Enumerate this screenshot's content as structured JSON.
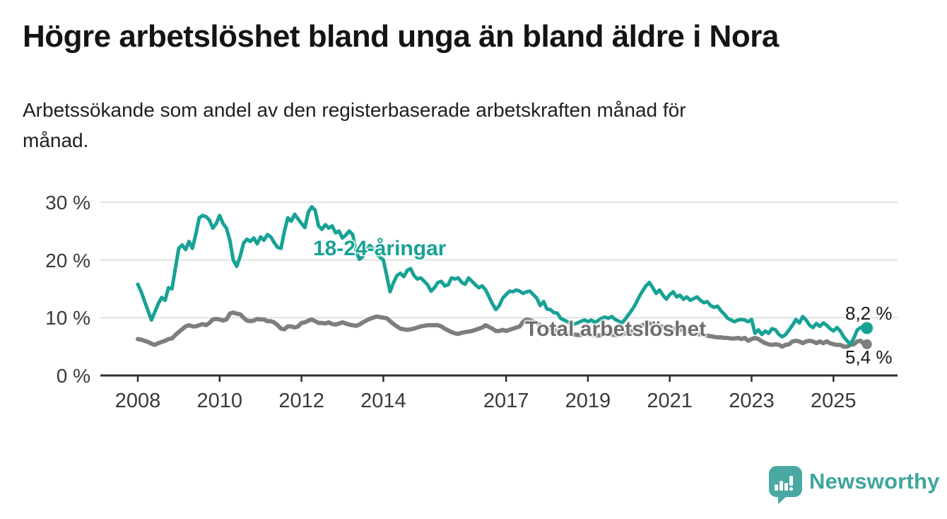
{
  "header": {
    "title": "Högre arbetslöshet bland unga än bland äldre i Nora",
    "subtitle_line1": "Arbetssökande som andel av den registerbaserade arbetskraften månad för",
    "subtitle_line2": "månad."
  },
  "colors": {
    "youth_teal": "#17a295",
    "total_gray": "#7e7e7e",
    "axis_dark": "#2e2e2e",
    "gridline": "#d9d9d9",
    "logo_teal": "#4aa8a2"
  },
  "chart_data": {
    "type": "line",
    "title": "",
    "xlabel": "",
    "ylabel": "",
    "x_start": "2008-01",
    "x_end": "2025-10",
    "frequency": "monthly",
    "ylim": [
      0,
      32
    ],
    "grid": "horizontal",
    "yticks": [
      {
        "value": 30,
        "label": "30 %"
      },
      {
        "value": 20,
        "label": "20 %"
      },
      {
        "value": 10,
        "label": "10 %"
      },
      {
        "value": 0,
        "label": "0 %"
      }
    ],
    "xticks": [
      {
        "year": 2008,
        "label": "2008"
      },
      {
        "year": 2010,
        "label": "2010"
      },
      {
        "year": 2012,
        "label": "2012"
      },
      {
        "year": 2014,
        "label": "2014"
      },
      {
        "year": 2017,
        "label": "2017"
      },
      {
        "year": 2019,
        "label": "2019"
      },
      {
        "year": 2021,
        "label": "2021"
      },
      {
        "year": 2023,
        "label": "2023"
      },
      {
        "year": 2025,
        "label": "2025"
      }
    ],
    "series": [
      {
        "name": "18-24-åringar",
        "color": "#17a295",
        "stroke_width": 5,
        "end_label": "8,2 %",
        "end_value": 8.2,
        "values": [
          15.8,
          14.5,
          12.8,
          11.2,
          9.6,
          11.0,
          12.4,
          13.5,
          13.0,
          15.2,
          15.0,
          18.5,
          22.0,
          22.6,
          21.8,
          23.2,
          22.0,
          24.4,
          27.3,
          27.7,
          27.5,
          26.9,
          25.5,
          26.3,
          27.7,
          26.3,
          25.5,
          23.4,
          20.0,
          18.9,
          20.6,
          22.9,
          23.6,
          23.2,
          23.8,
          22.8,
          24.0,
          23.4,
          24.4,
          24.0,
          23.0,
          22.2,
          22.0,
          25.0,
          27.3,
          26.7,
          27.9,
          27.1,
          26.3,
          25.6,
          28.3,
          29.2,
          28.6,
          25.9,
          25.3,
          26.1,
          25.5,
          25.9,
          24.7,
          25.0,
          23.8,
          24.3,
          25.0,
          24.4,
          21.5,
          20.1,
          20.6,
          21.8,
          22.5,
          22.0,
          21.0,
          20.5,
          20.0,
          17.3,
          14.5,
          16.1,
          17.3,
          17.7,
          17.1,
          18.2,
          18.5,
          17.3,
          16.7,
          16.9,
          16.3,
          15.7,
          14.6,
          15.2,
          16.1,
          16.3,
          15.5,
          15.7,
          16.9,
          16.7,
          16.9,
          16.1,
          15.8,
          16.9,
          16.3,
          15.7,
          15.2,
          15.5,
          14.8,
          13.6,
          12.4,
          11.4,
          12.1,
          13.4,
          14.0,
          14.6,
          14.5,
          14.8,
          14.6,
          14.2,
          14.5,
          14.6,
          14.0,
          13.4,
          12.1,
          12.8,
          11.5,
          11.4,
          10.9,
          10.8,
          9.9,
          9.6,
          9.3,
          9.0,
          8.9,
          9.1,
          9.4,
          9.6,
          9.3,
          9.6,
          9.2,
          9.5,
          9.9,
          10.1,
          9.9,
          10.2,
          9.7,
          9.4,
          9.1,
          9.8,
          10.6,
          11.4,
          12.4,
          13.6,
          14.6,
          15.5,
          16.1,
          15.2,
          14.2,
          14.8,
          13.9,
          13.2,
          14.0,
          14.5,
          13.6,
          13.9,
          13.2,
          13.6,
          13.0,
          13.3,
          13.6,
          13.0,
          12.6,
          12.8,
          12.1,
          11.8,
          12.0,
          11.2,
          10.6,
          9.9,
          9.6,
          9.3,
          9.6,
          9.7,
          9.6,
          9.3,
          9.7,
          7.3,
          7.9,
          7.1,
          7.7,
          7.3,
          8.1,
          7.9,
          7.1,
          6.7,
          7.1,
          7.9,
          8.7,
          9.7,
          9.1,
          10.2,
          9.6,
          8.7,
          8.3,
          9.0,
          8.5,
          9.1,
          8.7,
          8.1,
          7.7,
          8.3,
          7.7,
          6.7,
          6.0,
          5.4,
          6.5,
          7.9,
          8.3,
          8.2
        ]
      },
      {
        "name": "Total arbetslöshet",
        "color": "#7e7e7e",
        "stroke_width": 6,
        "end_label": "5,4 %",
        "end_value": 5.4,
        "values": [
          6.3,
          6.2,
          6.0,
          5.8,
          5.5,
          5.3,
          5.6,
          5.8,
          6.0,
          6.3,
          6.4,
          7.0,
          7.5,
          8.0,
          8.5,
          8.7,
          8.5,
          8.5,
          8.7,
          8.9,
          8.7,
          9.1,
          9.7,
          9.8,
          9.7,
          9.5,
          9.7,
          10.7,
          10.9,
          10.7,
          10.6,
          10.0,
          9.5,
          9.4,
          9.5,
          9.8,
          9.7,
          9.7,
          9.4,
          9.4,
          9.2,
          8.7,
          8.1,
          8.0,
          8.5,
          8.5,
          8.3,
          8.5,
          9.1,
          9.2,
          9.5,
          9.7,
          9.4,
          9.1,
          9.1,
          9.0,
          9.2,
          8.9,
          8.8,
          9.0,
          9.2,
          9.0,
          8.8,
          8.7,
          8.6,
          8.8,
          9.2,
          9.5,
          9.8,
          10.0,
          10.2,
          10.1,
          10.0,
          9.9,
          9.4,
          8.9,
          8.5,
          8.1,
          8.0,
          7.9,
          8.0,
          8.1,
          8.3,
          8.5,
          8.6,
          8.7,
          8.7,
          8.7,
          8.7,
          8.5,
          8.1,
          7.8,
          7.5,
          7.3,
          7.2,
          7.4,
          7.5,
          7.6,
          7.7,
          7.9,
          8.1,
          8.3,
          8.7,
          8.4,
          8.1,
          7.7,
          7.7,
          7.9,
          7.7,
          7.9,
          8.1,
          8.3,
          8.5,
          9.3,
          9.7,
          9.6,
          9.3,
          9.1,
          8.7,
          8.5,
          8.3,
          8.1,
          7.9,
          7.7,
          7.5,
          7.4,
          7.3,
          7.2,
          7.1,
          7.0,
          7.0,
          7.1,
          7.1,
          7.0,
          7.0,
          6.9,
          7.0,
          7.1,
          7.2,
          7.1,
          7.0,
          7.0,
          7.1,
          7.3,
          7.5,
          7.7,
          8.0,
          8.4,
          8.7,
          8.9,
          9.0,
          8.9,
          8.8,
          8.6,
          8.4,
          8.3,
          8.3,
          8.2,
          8.1,
          8.0,
          7.8,
          7.6,
          7.4,
          7.3,
          7.2,
          7.1,
          7.0,
          6.9,
          6.8,
          6.7,
          6.6,
          6.6,
          6.5,
          6.5,
          6.4,
          6.4,
          6.5,
          6.3,
          6.5,
          6.0,
          6.3,
          6.5,
          6.3,
          5.9,
          5.6,
          5.4,
          5.3,
          5.4,
          5.3,
          5.0,
          5.3,
          5.4,
          5.9,
          6.0,
          5.9,
          5.6,
          5.9,
          6.0,
          5.9,
          5.6,
          5.9,
          5.6,
          5.9,
          5.6,
          5.4,
          5.3,
          5.3,
          5.0,
          5.0,
          5.3,
          5.4,
          5.9,
          6.0,
          5.4
        ]
      }
    ],
    "legend_position": "inline-labels"
  },
  "footer": {
    "brand": "Newsworthy"
  }
}
